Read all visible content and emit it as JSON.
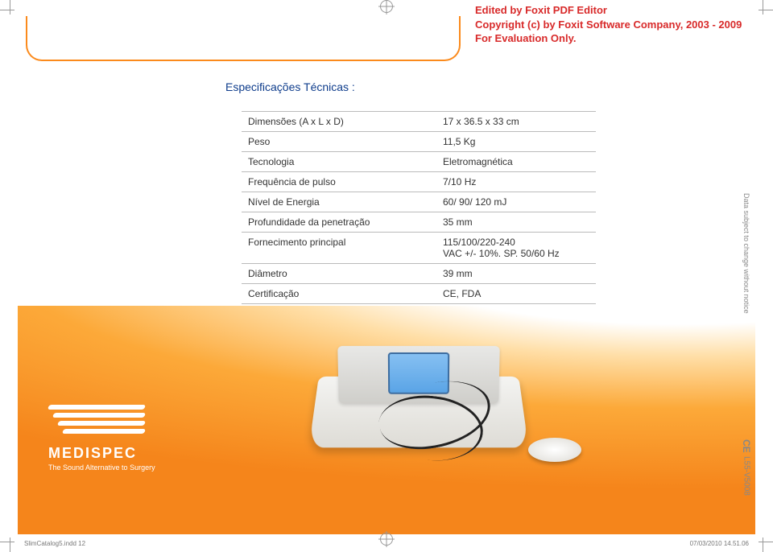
{
  "watermark": {
    "line1": "Edited by Foxit PDF Editor",
    "line2": "Copyright (c) by Foxit Software Company, 2003 - 2009",
    "line3": "For Evaluation Only.",
    "color": "#d82a2a"
  },
  "section_title": "Especificações Técnicas :",
  "title_color": "#0f3d8c",
  "accent_color": "#fb8a1c",
  "specs": {
    "rows": [
      {
        "label": "Dimensões (A x L x D)",
        "value": "17 x 36.5 x 33 cm"
      },
      {
        "label": "Peso",
        "value": "11,5 Kg"
      },
      {
        "label": "Tecnologia",
        "value": "Eletromagnética"
      },
      {
        "label": "Frequência de pulso",
        "value": "7/10 Hz"
      },
      {
        "label": "Nível de Energia",
        "value": "60/ 90/ 120 mJ"
      },
      {
        "label": "Profundidade da penetração",
        "value": "35 mm"
      },
      {
        "label": "Fornecimento principal",
        "value": "115/100/220-240\nVAC +/- 10%. SP. 50/60 Hz"
      },
      {
        "label": "Diâmetro",
        "value": "39 mm"
      },
      {
        "label": "Certificação",
        "value": "CE, FDA"
      }
    ],
    "border_color": "#bbbbbb",
    "text_color": "#333333",
    "font_size_pt": 9
  },
  "side_note": "Data subject to change without notice",
  "side_code": "L55-V5008",
  "ce_mark": "CE",
  "logo": {
    "name": "MEDISPEC",
    "tagline": "The Sound Alternative to Surgery",
    "color": "#ffffff"
  },
  "footer": {
    "left": "SlimCatalog5.indd   12",
    "right": "07/03/2010   14.51.06"
  },
  "background": {
    "gradient_colors": [
      "#ffffff",
      "#ffdfa8",
      "#fca939",
      "#f5851b"
    ]
  }
}
